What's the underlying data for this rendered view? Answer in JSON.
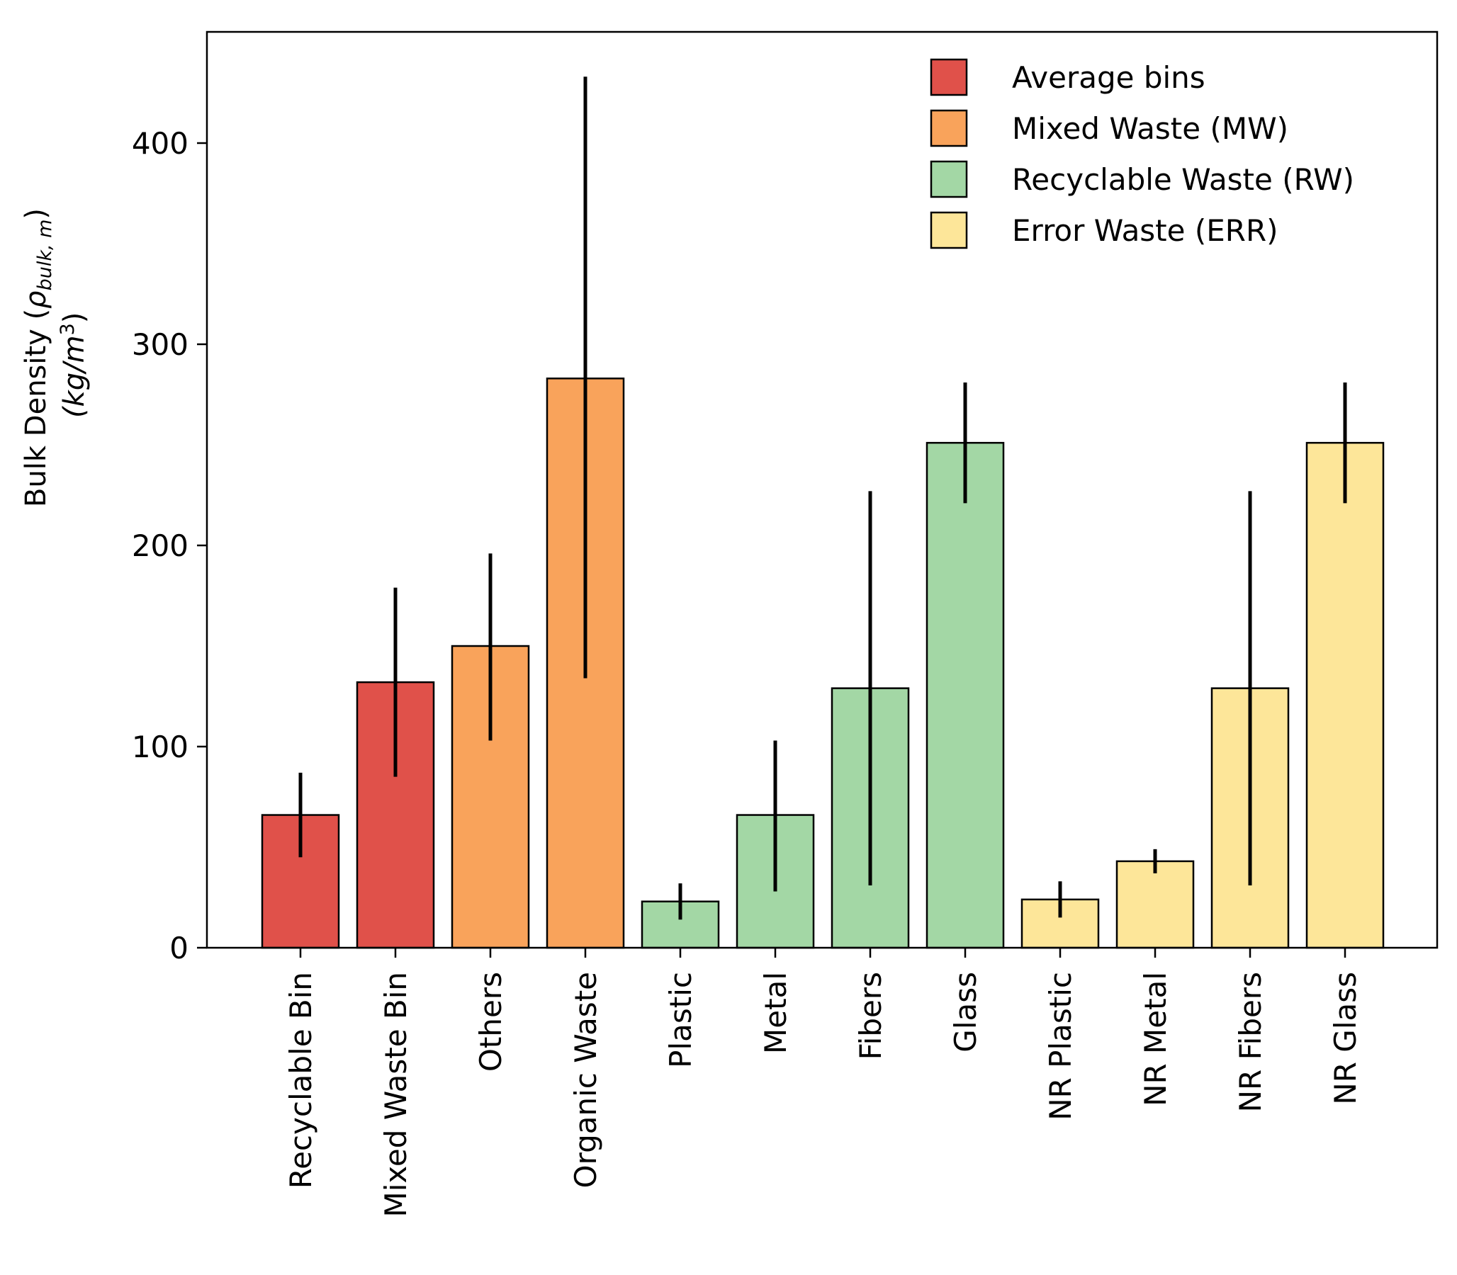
{
  "chart_data": {
    "type": "bar",
    "title": "",
    "xlabel": "",
    "ylabel": {
      "line1_prefix": "Bulk Density (",
      "rho": "ρ",
      "rho_subscript": "bulk, m",
      "line1_suffix": ")",
      "line2_prefix": "(kg/m",
      "line2_superscript": "3",
      "line2_suffix": ")"
    },
    "ylim": [
      0,
      450
    ],
    "yticks": [
      0,
      100,
      200,
      300,
      400
    ],
    "grid": false,
    "legend_position": "top-right",
    "categories": [
      "Recyclable Bin",
      "Mixed Waste Bin",
      "Others",
      "Organic Waste",
      "Plastic",
      "Metal",
      "Fibers",
      "Glass",
      "NR Plastic",
      "NR Metal",
      "NR Fibers",
      "NR Glass"
    ],
    "values": [
      66,
      132,
      150,
      283,
      23,
      66,
      129,
      251,
      24,
      43,
      129,
      251
    ],
    "error_low": [
      45,
      85,
      103,
      134,
      14,
      28,
      31,
      221,
      15,
      37,
      31,
      221
    ],
    "error_high": [
      87,
      179,
      196,
      433,
      32,
      103,
      227,
      281,
      33,
      49,
      227,
      281
    ],
    "groups": [
      "average",
      "average",
      "mw",
      "mw",
      "rw",
      "rw",
      "rw",
      "rw",
      "err",
      "err",
      "err",
      "err"
    ],
    "series": [
      {
        "key": "average",
        "name": "Average bins",
        "color": "#e0514a"
      },
      {
        "key": "mw",
        "name": "Mixed Waste (MW)",
        "color": "#f9a35b"
      },
      {
        "key": "rw",
        "name": "Recyclable Waste (RW)",
        "color": "#a3d7a5"
      },
      {
        "key": "err",
        "name": "Error Waste (ERR)",
        "color": "#fde699"
      }
    ]
  }
}
